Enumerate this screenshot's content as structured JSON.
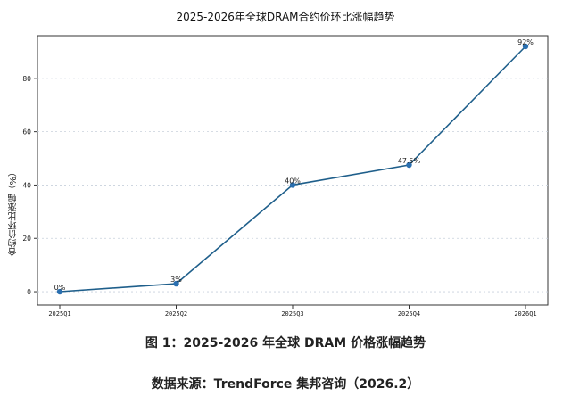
{
  "chart_data": {
    "type": "line",
    "title": "2025-2026年全球DRAM合约价环比涨幅趋势",
    "xlabel": "",
    "ylabel": "合约价环比涨幅（%）",
    "categories": [
      "2025Q1",
      "2025Q2",
      "2025Q3",
      "2025Q4",
      "2026Q1"
    ],
    "series": [
      {
        "values": [
          0,
          3,
          40,
          47.5,
          92
        ]
      }
    ],
    "data_labels": [
      "0%",
      "3%",
      "40%",
      "47.5%",
      "92%"
    ],
    "yticks": [
      0,
      20,
      40,
      60,
      80
    ],
    "ylim": [
      -5,
      96
    ],
    "grid": true,
    "line_color": "#1f5f8b",
    "marker_color": "#2a6fb0"
  },
  "caption": "图 1：2025-2026 年全球 DRAM 价格涨幅趋势",
  "source": "数据来源：TrendForce 集邦咨询（2026.2）"
}
